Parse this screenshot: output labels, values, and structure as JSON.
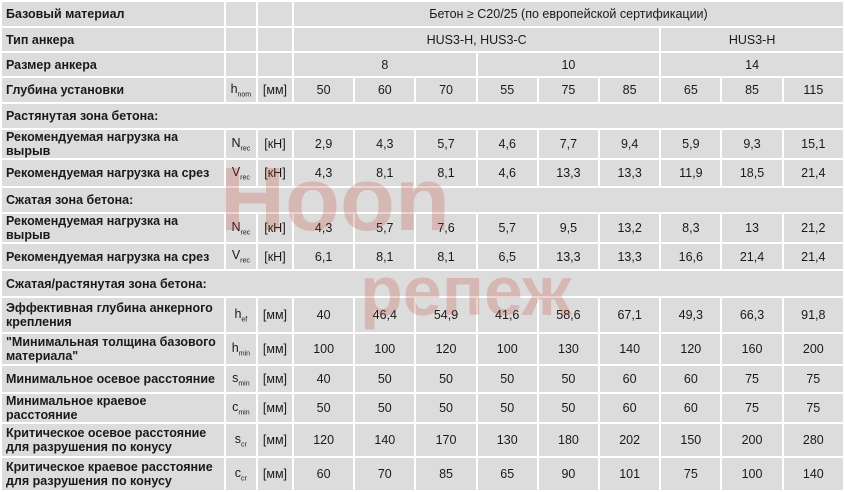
{
  "header": {
    "base_material_label": "Базовый материал",
    "base_material_value": "Бетон ≥ C20/25 (по европейской сертификации)",
    "anchor_type_label": "Тип анкера",
    "anchor_types": [
      "HUS3-H, HUS3-C",
      "HUS3-H"
    ],
    "anchor_size_label": "Размер анкера",
    "anchor_sizes": [
      "8",
      "10",
      "14"
    ],
    "install_depth_label": "Глубина установки",
    "install_depth_sym": "h",
    "install_depth_sub": "nom",
    "install_depth_unit": "[мм]",
    "install_depth_values": [
      "50",
      "60",
      "70",
      "55",
      "75",
      "85",
      "65",
      "85",
      "115"
    ]
  },
  "sections": {
    "tension": "Растянутая зона бетона:",
    "compression": "Сжатая зона бетона:",
    "combined": "Сжатая/растянутая зона бетона:"
  },
  "rows": {
    "t_pull": {
      "label": "Рекомендуемая нагрузка на вырыв",
      "sym": "N",
      "sub": "rec",
      "unit": "[кН]",
      "values": [
        "2,9",
        "4,3",
        "5,7",
        "4,6",
        "7,7",
        "9,4",
        "5,9",
        "9,3",
        "15,1"
      ]
    },
    "t_shear": {
      "label": "Рекомендуемая нагрузка на срез",
      "sym": "V",
      "sub": "rec",
      "unit": "[кН]",
      "values": [
        "4,3",
        "8,1",
        "8,1",
        "4,6",
        "13,3",
        "13,3",
        "11,9",
        "18,5",
        "21,4"
      ]
    },
    "c_pull": {
      "label": "Рекомендуемая нагрузка на вырыв",
      "sym": "N",
      "sub": "rec",
      "unit": "[кН]",
      "values": [
        "4,3",
        "5,7",
        "7,6",
        "5,7",
        "9,5",
        "13,2",
        "8,3",
        "13",
        "21,2"
      ]
    },
    "c_shear": {
      "label": "Рекомендуемая нагрузка на срез",
      "sym": "V",
      "sub": "rec",
      "unit": "[кН]",
      "values": [
        "6,1",
        "8,1",
        "8,1",
        "6,5",
        "13,3",
        "13,3",
        "16,6",
        "21,4",
        "21,4"
      ]
    },
    "hef": {
      "label": "Эффективная глубина анкерного крепления",
      "sym": "h",
      "sub": "ef",
      "unit": "[мм]",
      "values": [
        "40",
        "46,4",
        "54,9",
        "41,6",
        "58,6",
        "67,1",
        "49,3",
        "66,3",
        "91,8"
      ]
    },
    "hmin": {
      "label": "\"Минимальная толщина базового материала\"",
      "sym": "h",
      "sub": "min",
      "unit": "[мм]",
      "values": [
        "100",
        "100",
        "120",
        "100",
        "130",
        "140",
        "120",
        "160",
        "200"
      ]
    },
    "smin": {
      "label": "Минимальное осевое расстояние",
      "sym": "s",
      "sub": "min",
      "unit": "[мм]",
      "values": [
        "40",
        "50",
        "50",
        "50",
        "50",
        "60",
        "60",
        "75",
        "75"
      ]
    },
    "cmin": {
      "label": "Минимальное краевое расстояние",
      "sym": "c",
      "sub": "min",
      "unit": "[мм]",
      "values": [
        "50",
        "50",
        "50",
        "50",
        "50",
        "60",
        "60",
        "75",
        "75"
      ]
    },
    "scr": {
      "label": "Критическое осевое расстояние для разрушения по конусу",
      "sym": "s",
      "sub": "cr",
      "unit": "[мм]",
      "values": [
        "120",
        "140",
        "170",
        "130",
        "180",
        "202",
        "150",
        "200",
        "280"
      ]
    },
    "ccr": {
      "label": "Критическое краевое расстояние для разрушения по конусу",
      "sym": "c",
      "sub": "cr",
      "unit": "[мм]",
      "values": [
        "60",
        "70",
        "85",
        "65",
        "90",
        "101",
        "75",
        "100",
        "140"
      ]
    }
  },
  "watermark": {
    "line1": "Hoon",
    "line2": "репеж",
    "color": "#c0392b"
  }
}
